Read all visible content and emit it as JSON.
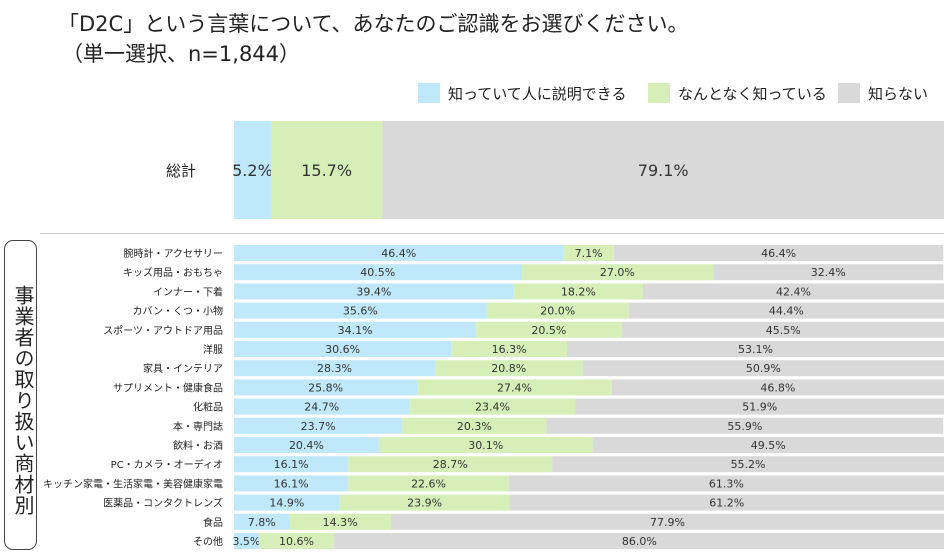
{
  "title_line1": "「D2C」という言葉について、あなたのご認識をお選びください。",
  "title_line2": "（単一選択、n=1,844）",
  "side_label": "事業者の取り扱い商材別",
  "colors": {
    "explain": "#bfe8fb",
    "somewhat": "#d6efb8",
    "unknown": "#d9d9d9"
  },
  "chart_data": {
    "type": "bar",
    "orientation": "horizontal",
    "stacked": true,
    "percent": true,
    "unit": "%",
    "xlim": [
      0,
      100
    ],
    "legend_position": "top-right",
    "legend": [
      "知っていて人に説明できる",
      "なんとなく知っている",
      "知らない"
    ],
    "total": {
      "category": "総計",
      "values": [
        5.2,
        15.7,
        79.1
      ]
    },
    "categories": [
      "腕時計・アクセサリー",
      "キッズ用品・おもちゃ",
      "インナー・下着",
      "カバン・くつ・小物",
      "スポーツ・アウトドア用品",
      "洋服",
      "家具・インテリア",
      "サプリメント・健康食品",
      "化粧品",
      "本・専門誌",
      "飲料・お酒",
      "PC・カメラ・オーディオ",
      "キッチン家電・生活家電・美容健康家電",
      "医薬品・コンタクトレンズ",
      "食品",
      "その他"
    ],
    "series": [
      {
        "name": "知っていて人に説明できる",
        "values": [
          46.4,
          40.5,
          39.4,
          35.6,
          34.1,
          30.6,
          28.3,
          25.8,
          24.7,
          23.7,
          20.4,
          16.1,
          16.1,
          14.9,
          7.8,
          3.5
        ]
      },
      {
        "name": "なんとなく知っている",
        "values": [
          7.1,
          27.0,
          18.2,
          20.0,
          20.5,
          16.3,
          20.8,
          27.4,
          23.4,
          20.3,
          30.1,
          28.7,
          22.6,
          23.9,
          14.3,
          10.6
        ]
      },
      {
        "name": "知らない",
        "values": [
          46.4,
          32.4,
          42.4,
          44.4,
          45.5,
          53.1,
          50.9,
          46.8,
          51.9,
          55.9,
          49.5,
          55.2,
          61.3,
          61.2,
          77.9,
          86.0
        ]
      }
    ]
  }
}
